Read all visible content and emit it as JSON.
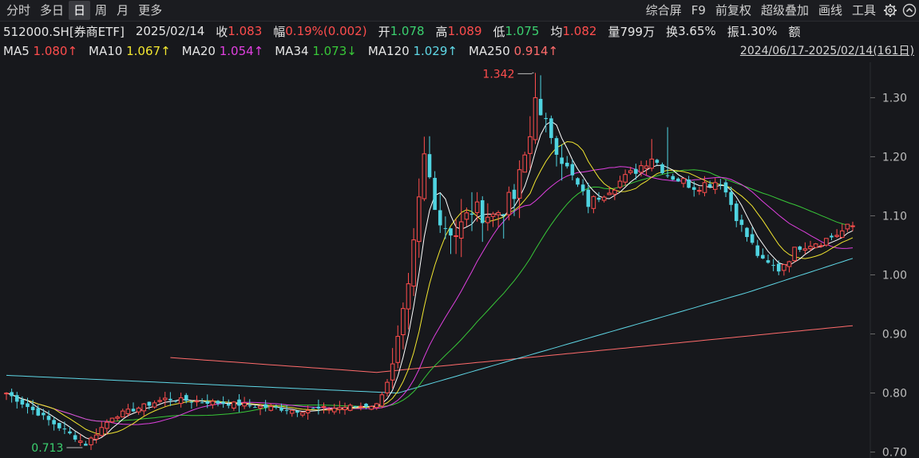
{
  "toolbar": {
    "left_tabs": [
      {
        "label": "分时",
        "active": false
      },
      {
        "label": "多日",
        "active": false
      },
      {
        "label": "日",
        "active": true
      },
      {
        "label": "周",
        "active": false
      },
      {
        "label": "月",
        "active": false
      },
      {
        "label": "更多",
        "active": false
      }
    ],
    "right_items": [
      "综合屏",
      "F9",
      "前复权",
      "超级叠加",
      "画线",
      "工具"
    ],
    "icons": [
      "gear-icon",
      "chevron-up-circle-icon"
    ]
  },
  "quote": {
    "code_name": "512000.SH[券商ETF]",
    "date": "2025/02/14",
    "close_label": "收",
    "close_value": "1.083",
    "change_label": "幅",
    "change_value": "0.19%(0.002)",
    "open_label": "开",
    "open_value": "1.078",
    "high_label": "高",
    "high_value": "1.089",
    "low_label": "低",
    "low_value": "1.075",
    "avg_label": "均",
    "avg_value": "1.082",
    "volume_label": "量",
    "volume_value": "799万",
    "turnover_label": "换",
    "turnover_value": "3.65%",
    "amplitude_label": "振",
    "amplitude_value": "1.30%",
    "amount_label": "额"
  },
  "ma_row": {
    "items": [
      {
        "label": "MA5",
        "value": "1.080↑",
        "color": "#ffffff"
      },
      {
        "label": "MA10",
        "value": "1.067↑",
        "color": "#f2e630"
      },
      {
        "label": "MA20",
        "value": "1.054↑",
        "color": "#e040e0"
      },
      {
        "label": "MA34",
        "value": "1.073↓",
        "color": "#38c838"
      },
      {
        "label": "MA120",
        "value": "1.029↑",
        "color": "#5fd7e6"
      },
      {
        "label": "MA250",
        "value": "0.914↑",
        "color": "#ff6b6b"
      }
    ],
    "range": "2024/06/17-2025/02/14(161日)"
  },
  "chart_data": {
    "type": "candlestick",
    "ylim": [
      0.69,
      1.36
    ],
    "y_ticks": [
      "1.30",
      "1.20",
      "1.10",
      "1.00",
      "0.90",
      "0.80",
      "0.70"
    ],
    "y_tick_values": [
      1.3,
      1.2,
      1.1,
      1.0,
      0.9,
      0.8,
      0.7
    ],
    "annotations": [
      {
        "text": "1.342",
        "value": 1.342,
        "index": 100,
        "color": "#ff4d4d"
      },
      {
        "text": "0.713",
        "value": 0.713,
        "index": 15,
        "color": "#3bd16f"
      }
    ],
    "series_colors": {
      "up": "#ff4d4d",
      "down": "#4fd3e0",
      "ma5": "#ffffff",
      "ma10": "#f2e630",
      "ma20": "#e040e0",
      "ma34": "#38c838",
      "ma120": "#5fd7e6",
      "ma250": "#ff6b6b"
    },
    "anchors": [
      [
        0,
        0.8
      ],
      [
        15,
        0.713
      ],
      [
        20,
        0.76
      ],
      [
        30,
        0.79
      ],
      [
        45,
        0.78
      ],
      [
        55,
        0.77
      ],
      [
        70,
        0.78
      ],
      [
        73,
        0.84
      ],
      [
        76,
        0.97
      ],
      [
        79,
        1.2
      ],
      [
        82,
        1.09
      ],
      [
        85,
        1.07
      ],
      [
        88,
        1.11
      ],
      [
        92,
        1.1
      ],
      [
        96,
        1.13
      ],
      [
        100,
        1.27
      ],
      [
        103,
        1.24
      ],
      [
        106,
        1.18
      ],
      [
        110,
        1.12
      ],
      [
        113,
        1.14
      ],
      [
        118,
        1.17
      ],
      [
        122,
        1.2
      ],
      [
        125,
        1.17
      ],
      [
        130,
        1.15
      ],
      [
        135,
        1.16
      ],
      [
        139,
        1.08
      ],
      [
        143,
        1.02
      ],
      [
        146,
        1.01
      ],
      [
        150,
        1.05
      ],
      [
        155,
        1.06
      ],
      [
        160,
        1.083
      ]
    ],
    "ma120_points": [
      [
        0,
        0.83
      ],
      [
        74,
        0.8
      ],
      [
        105,
        0.88
      ],
      [
        140,
        0.97
      ],
      [
        160,
        1.028
      ]
    ],
    "ma250_points": [
      [
        31,
        0.86
      ],
      [
        70,
        0.835
      ],
      [
        110,
        0.87
      ],
      [
        160,
        0.914
      ]
    ]
  }
}
